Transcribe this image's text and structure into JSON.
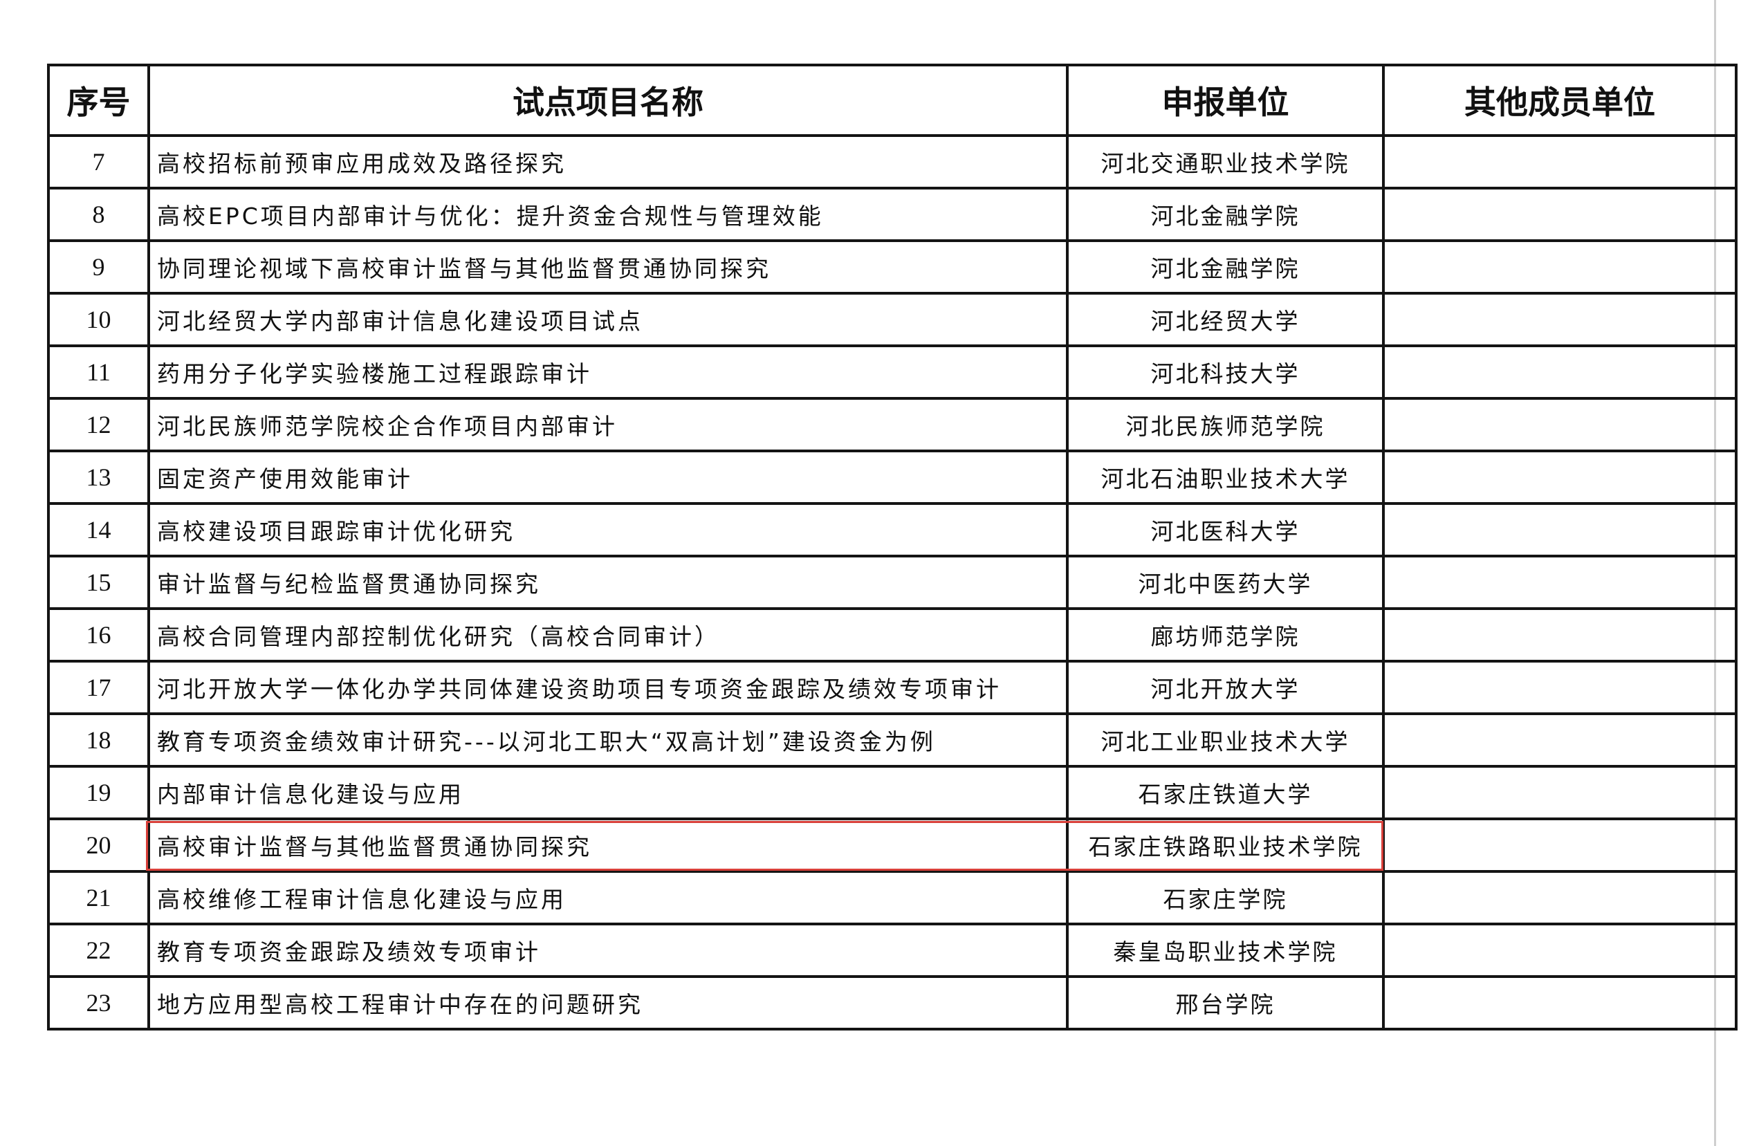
{
  "headers": {
    "index": "序号",
    "project": "试点项目名称",
    "applicant": "申报单位",
    "members": "其他成员单位"
  },
  "highlight_color": "#d8403a",
  "highlighted_index": "20",
  "rows": [
    {
      "index": "7",
      "project": "高校招标前预审应用成效及路径探究",
      "applicant": "河北交通职业技术学院",
      "members": ""
    },
    {
      "index": "8",
      "project": "高校EPC项目内部审计与优化：提升资金合规性与管理效能",
      "applicant": "河北金融学院",
      "members": ""
    },
    {
      "index": "9",
      "project": "协同理论视域下高校审计监督与其他监督贯通协同探究",
      "applicant": "河北金融学院",
      "members": ""
    },
    {
      "index": "10",
      "project": "河北经贸大学内部审计信息化建设项目试点",
      "applicant": "河北经贸大学",
      "members": ""
    },
    {
      "index": "11",
      "project": "药用分子化学实验楼施工过程跟踪审计",
      "applicant": "河北科技大学",
      "members": ""
    },
    {
      "index": "12",
      "project": "河北民族师范学院校企合作项目内部审计",
      "applicant": "河北民族师范学院",
      "members": ""
    },
    {
      "index": "13",
      "project": "固定资产使用效能审计",
      "applicant": "河北石油职业技术大学",
      "members": ""
    },
    {
      "index": "14",
      "project": "高校建设项目跟踪审计优化研究",
      "applicant": "河北医科大学",
      "members": ""
    },
    {
      "index": "15",
      "project": "审计监督与纪检监督贯通协同探究",
      "applicant": "河北中医药大学",
      "members": ""
    },
    {
      "index": "16",
      "project": "高校合同管理内部控制优化研究（高校合同审计）",
      "applicant": "廊坊师范学院",
      "members": ""
    },
    {
      "index": "17",
      "project": "河北开放大学一体化办学共同体建设资助项目专项资金跟踪及绩效专项审计",
      "applicant": "河北开放大学",
      "members": ""
    },
    {
      "index": "18",
      "project": "教育专项资金绩效审计研究---以河北工职大“双高计划”建设资金为例",
      "applicant": "河北工业职业技术大学",
      "members": ""
    },
    {
      "index": "19",
      "project": "内部审计信息化建设与应用",
      "applicant": "石家庄铁道大学",
      "members": ""
    },
    {
      "index": "20",
      "project": "高校审计监督与其他监督贯通协同探究",
      "applicant": "石家庄铁路职业技术学院",
      "members": ""
    },
    {
      "index": "21",
      "project": "高校维修工程审计信息化建设与应用",
      "applicant": "石家庄学院",
      "members": ""
    },
    {
      "index": "22",
      "project": "教育专项资金跟踪及绩效专项审计",
      "applicant": "秦皇岛职业技术学院",
      "members": ""
    },
    {
      "index": "23",
      "project": "地方应用型高校工程审计中存在的问题研究",
      "applicant": "邢台学院",
      "members": ""
    }
  ]
}
